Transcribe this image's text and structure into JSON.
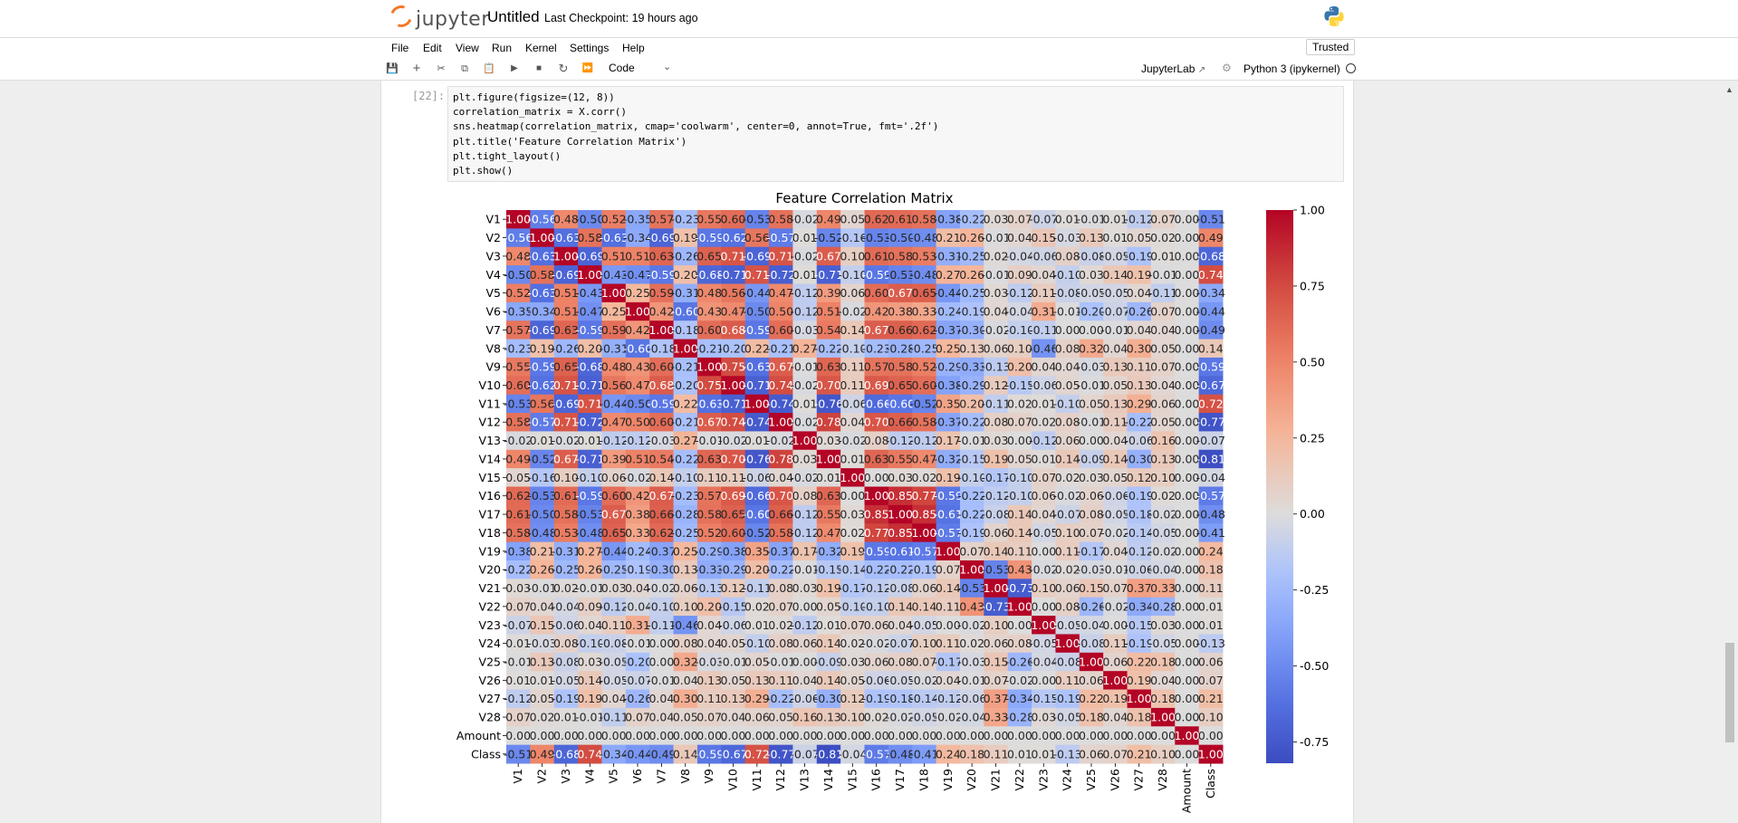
{
  "header": {
    "logo_text": "jupyter",
    "notebook_title": "Untitled",
    "checkpoint": "Last Checkpoint: 19 hours ago"
  },
  "menu": {
    "items": [
      "File",
      "Edit",
      "View",
      "Run",
      "Kernel",
      "Settings",
      "Help"
    ],
    "trusted": "Trusted"
  },
  "toolbar": {
    "icons": [
      "save-icon",
      "add-icon",
      "cut-icon",
      "copy-icon",
      "paste-icon",
      "run-icon",
      "stop-icon",
      "restart-icon",
      "fast-forward-icon"
    ],
    "cell_type": "Code",
    "jupyterlab_link": "JupyterLab",
    "kernel_name": "Python 3 (ipykernel)"
  },
  "cell": {
    "prompt": "[22]:",
    "lines": [
      "plt.figure(figsize=(12, 8))",
      "correlation_matrix = X.corr()",
      "sns.heatmap(correlation_matrix, cmap='coolwarm', center=0, annot=True, fmt='.2f')",
      "plt.title('Feature Correlation Matrix')",
      "plt.tight_layout()",
      "plt.show()"
    ]
  },
  "chart_data": {
    "type": "heatmap",
    "title": "Feature Correlation Matrix",
    "labels": [
      "V1",
      "V2",
      "V3",
      "V4",
      "V5",
      "V6",
      "V7",
      "V8",
      "V9",
      "V10",
      "V11",
      "V12",
      "V13",
      "V14",
      "V15",
      "V16",
      "V17",
      "V18",
      "V19",
      "V20",
      "V21",
      "V22",
      "V23",
      "V24",
      "V25",
      "V26",
      "V27",
      "V28",
      "Amount",
      "Class"
    ],
    "colorbar_ticks": [
      "1.00",
      "0.75",
      "0.50",
      "0.25",
      "0.00",
      "-0.25",
      "-0.50",
      "-0.75"
    ],
    "vmin": -0.82,
    "vmax": 1.0,
    "matrix": [
      [
        1.0,
        -0.56,
        0.48,
        -0.5,
        0.52,
        -0.35,
        0.57,
        -0.23,
        0.55,
        0.6,
        -0.53,
        0.58,
        -0.02,
        0.49,
        0.05,
        0.62,
        0.61,
        0.58,
        -0.38,
        -0.22,
        0.03,
        0.07,
        -0.07,
        0.01,
        -0.01,
        0.01,
        -0.12,
        0.07,
        -0.0,
        -0.51
      ],
      [
        -0.56,
        1.0,
        -0.63,
        0.58,
        -0.63,
        -0.34,
        -0.69,
        0.19,
        -0.59,
        -0.62,
        0.56,
        -0.57,
        0.01,
        -0.52,
        -0.16,
        -0.53,
        -0.5,
        -0.48,
        0.21,
        0.26,
        -0.01,
        0.04,
        0.15,
        -0.03,
        0.13,
        0.01,
        0.05,
        0.02,
        -0.0,
        0.49
      ],
      [
        0.48,
        -0.63,
        1.0,
        -0.69,
        0.51,
        0.51,
        0.63,
        -0.26,
        0.65,
        0.71,
        -0.69,
        0.71,
        -0.02,
        0.67,
        0.1,
        0.61,
        0.58,
        0.53,
        -0.31,
        -0.25,
        0.02,
        -0.04,
        -0.06,
        0.08,
        -0.08,
        -0.05,
        -0.19,
        0.01,
        -0.0,
        -0.68
      ],
      [
        -0.5,
        0.58,
        -0.69,
        1.0,
        -0.43,
        -0.47,
        -0.59,
        0.2,
        -0.68,
        -0.71,
        0.71,
        -0.72,
        0.01,
        -0.71,
        -0.1,
        -0.59,
        -0.53,
        -0.48,
        0.27,
        0.26,
        -0.01,
        0.09,
        0.04,
        -0.1,
        0.03,
        0.14,
        0.19,
        -0.01,
        0.0,
        0.74
      ],
      [
        0.52,
        -0.63,
        0.51,
        -0.43,
        1.0,
        0.25,
        0.59,
        -0.31,
        0.48,
        0.56,
        -0.44,
        0.47,
        -0.12,
        0.39,
        0.06,
        0.6,
        0.67,
        0.65,
        -0.44,
        -0.25,
        0.03,
        -0.12,
        0.11,
        -0.08,
        -0.05,
        -0.05,
        0.04,
        -0.11,
        -0.0,
        -0.34
      ],
      [
        -0.35,
        -0.34,
        0.51,
        -0.47,
        0.25,
        1.0,
        0.42,
        -0.6,
        0.43,
        0.47,
        -0.5,
        0.5,
        -0.12,
        0.51,
        -0.02,
        0.42,
        0.38,
        0.33,
        -0.24,
        -0.19,
        0.04,
        -0.04,
        0.31,
        -0.01,
        -0.2,
        -0.07,
        -0.26,
        0.07,
        0.0,
        -0.44
      ],
      [
        0.57,
        -0.69,
        0.63,
        -0.59,
        0.59,
        0.42,
        1.0,
        -0.18,
        0.6,
        0.68,
        -0.59,
        0.6,
        -0.03,
        0.54,
        0.14,
        0.67,
        0.66,
        0.62,
        -0.37,
        -0.3,
        -0.02,
        -0.1,
        -0.11,
        0.0,
        0.0,
        -0.01,
        0.04,
        0.04,
        0.0,
        -0.49
      ],
      [
        -0.23,
        0.19,
        -0.26,
        0.2,
        -0.31,
        -0.6,
        -0.18,
        1.0,
        -0.21,
        -0.2,
        0.22,
        -0.21,
        0.27,
        -0.22,
        -0.1,
        -0.23,
        -0.28,
        -0.25,
        0.25,
        0.13,
        0.06,
        0.1,
        -0.46,
        0.08,
        0.32,
        0.04,
        0.3,
        0.05,
        0.0,
        0.14
      ],
      [
        0.55,
        -0.59,
        0.65,
        -0.68,
        0.48,
        0.43,
        0.6,
        -0.21,
        1.0,
        0.75,
        -0.63,
        0.67,
        -0.01,
        0.63,
        0.11,
        0.57,
        0.58,
        0.52,
        -0.29,
        -0.33,
        -0.13,
        0.2,
        0.04,
        0.04,
        -0.03,
        0.13,
        0.11,
        0.07,
        -0.0,
        -0.59
      ],
      [
        0.6,
        -0.62,
        0.71,
        -0.71,
        0.56,
        0.47,
        0.68,
        -0.2,
        0.75,
        1.0,
        -0.71,
        0.74,
        -0.02,
        0.7,
        0.11,
        0.69,
        0.65,
        0.6,
        -0.38,
        -0.29,
        0.12,
        -0.15,
        -0.06,
        0.05,
        -0.01,
        0.05,
        0.13,
        0.04,
        0.0,
        -0.67
      ],
      [
        -0.53,
        0.56,
        -0.69,
        0.71,
        -0.44,
        -0.5,
        -0.59,
        0.22,
        -0.63,
        -0.71,
        1.0,
        -0.74,
        0.01,
        -0.76,
        -0.06,
        -0.66,
        -0.6,
        -0.52,
        0.35,
        0.2,
        -0.11,
        0.02,
        0.01,
        -0.1,
        0.05,
        0.13,
        0.29,
        0.06,
        0.0,
        0.72
      ],
      [
        0.58,
        -0.57,
        0.71,
        -0.72,
        0.47,
        0.5,
        0.6,
        -0.21,
        0.67,
        0.74,
        -0.74,
        1.0,
        -0.02,
        0.78,
        0.04,
        0.7,
        0.66,
        0.58,
        -0.37,
        -0.22,
        0.08,
        0.07,
        0.02,
        0.08,
        -0.01,
        0.11,
        -0.22,
        0.05,
        -0.0,
        -0.77
      ],
      [
        -0.02,
        0.01,
        -0.02,
        0.01,
        -0.12,
        -0.12,
        -0.03,
        0.27,
        -0.01,
        -0.02,
        0.01,
        -0.02,
        1.0,
        0.03,
        -0.02,
        0.08,
        -0.12,
        -0.12,
        0.17,
        -0.01,
        0.03,
        0.0,
        -0.12,
        0.06,
        0.0,
        0.04,
        -0.06,
        0.16,
        0.0,
        -0.07
      ],
      [
        0.49,
        -0.52,
        0.67,
        -0.71,
        0.39,
        0.51,
        0.54,
        -0.22,
        0.63,
        0.7,
        -0.76,
        0.78,
        0.03,
        1.0,
        0.01,
        0.63,
        0.55,
        0.47,
        -0.32,
        -0.15,
        0.19,
        0.05,
        0.01,
        0.14,
        -0.09,
        0.14,
        -0.3,
        0.13,
        0.0,
        -0.81
      ],
      [
        0.05,
        -0.16,
        0.1,
        -0.1,
        0.06,
        -0.02,
        0.14,
        -0.1,
        0.11,
        0.11,
        -0.06,
        0.04,
        -0.02,
        0.01,
        1.0,
        0.0,
        0.03,
        0.02,
        0.19,
        -0.1,
        -0.17,
        -0.1,
        0.07,
        0.02,
        0.03,
        0.05,
        0.12,
        0.1,
        0.0,
        -0.04
      ],
      [
        0.62,
        -0.53,
        0.61,
        -0.59,
        0.6,
        0.42,
        0.67,
        -0.23,
        0.57,
        0.69,
        -0.66,
        0.7,
        0.08,
        0.63,
        0.0,
        1.0,
        0.85,
        0.77,
        -0.59,
        -0.22,
        -0.12,
        -0.1,
        0.06,
        -0.02,
        0.06,
        -0.06,
        -0.19,
        0.02,
        -0.0,
        -0.57
      ],
      [
        0.61,
        -0.5,
        0.58,
        -0.53,
        0.67,
        0.38,
        0.66,
        -0.28,
        0.58,
        0.65,
        -0.6,
        0.66,
        -0.12,
        0.55,
        0.03,
        0.85,
        1.0,
        0.85,
        -0.61,
        -0.22,
        -0.08,
        0.14,
        0.04,
        -0.07,
        0.08,
        -0.05,
        -0.18,
        -0.02,
        -0.0,
        -0.48
      ],
      [
        0.58,
        -0.48,
        0.53,
        -0.48,
        0.65,
        0.33,
        0.62,
        -0.25,
        0.52,
        0.6,
        -0.52,
        0.58,
        -0.12,
        0.47,
        0.02,
        0.77,
        0.85,
        1.0,
        -0.57,
        -0.19,
        0.06,
        0.14,
        -0.05,
        0.1,
        0.07,
        -0.02,
        -0.14,
        -0.05,
        -0.0,
        -0.41
      ],
      [
        -0.38,
        0.21,
        -0.31,
        0.27,
        -0.44,
        -0.24,
        -0.37,
        0.25,
        -0.29,
        -0.38,
        0.35,
        -0.37,
        0.17,
        -0.32,
        0.19,
        -0.59,
        -0.61,
        -0.57,
        1.0,
        0.07,
        0.14,
        0.11,
        -0.0,
        0.11,
        -0.17,
        0.04,
        -0.12,
        -0.02,
        0.0,
        0.24
      ],
      [
        -0.22,
        0.26,
        -0.25,
        0.26,
        -0.25,
        -0.19,
        -0.3,
        0.13,
        -0.33,
        -0.29,
        0.2,
        -0.22,
        -0.01,
        -0.15,
        -0.14,
        -0.22,
        -0.22,
        -0.19,
        0.07,
        1.0,
        -0.53,
        0.43,
        -0.02,
        0.02,
        -0.03,
        -0.01,
        -0.06,
        -0.04,
        0.0,
        0.18
      ],
      [
        0.03,
        -0.01,
        0.02,
        -0.01,
        0.03,
        0.04,
        -0.02,
        0.06,
        -0.13,
        0.12,
        -0.11,
        0.08,
        0.03,
        0.19,
        -0.17,
        -0.12,
        -0.08,
        0.06,
        0.14,
        -0.53,
        1.0,
        -0.73,
        0.1,
        0.06,
        0.15,
        0.07,
        0.37,
        0.33,
        0.0,
        0.11
      ],
      [
        0.07,
        0.04,
        -0.04,
        0.09,
        -0.12,
        -0.04,
        -0.1,
        0.1,
        0.2,
        -0.15,
        0.02,
        0.07,
        0.0,
        0.05,
        -0.1,
        -0.1,
        0.14,
        0.14,
        0.11,
        0.43,
        -0.73,
        1.0,
        0.0,
        0.08,
        -0.26,
        -0.02,
        -0.34,
        -0.28,
        0.0,
        0.01
      ],
      [
        -0.07,
        0.15,
        -0.06,
        0.04,
        0.11,
        0.31,
        -0.11,
        -0.46,
        0.04,
        -0.06,
        0.01,
        0.02,
        -0.12,
        0.01,
        0.07,
        0.06,
        0.04,
        -0.05,
        -0.0,
        -0.02,
        0.1,
        0.0,
        1.0,
        -0.05,
        -0.04,
        0.0,
        -0.15,
        0.03,
        0.0,
        0.01
      ],
      [
        0.01,
        -0.03,
        0.08,
        -0.1,
        -0.08,
        -0.01,
        0.0,
        0.08,
        0.04,
        0.05,
        -0.1,
        0.08,
        0.06,
        0.14,
        0.02,
        -0.02,
        -0.07,
        0.1,
        0.11,
        0.02,
        0.06,
        0.08,
        -0.05,
        1.0,
        -0.08,
        0.11,
        -0.19,
        -0.05,
        0.0,
        -0.13
      ],
      [
        -0.01,
        0.13,
        -0.08,
        0.03,
        -0.05,
        -0.2,
        0.0,
        0.32,
        -0.03,
        -0.01,
        0.05,
        -0.01,
        0.0,
        -0.09,
        0.03,
        0.06,
        0.08,
        0.07,
        -0.17,
        -0.03,
        0.15,
        -0.26,
        -0.04,
        -0.08,
        1.0,
        0.06,
        0.22,
        0.18,
        0.0,
        0.06
      ],
      [
        0.01,
        0.01,
        -0.05,
        0.14,
        -0.05,
        -0.07,
        -0.01,
        0.04,
        0.13,
        0.05,
        0.13,
        0.11,
        0.04,
        0.14,
        0.05,
        -0.06,
        -0.05,
        -0.02,
        0.04,
        -0.01,
        0.07,
        -0.02,
        0.0,
        0.11,
        0.06,
        1.0,
        0.19,
        0.04,
        0.0,
        0.07
      ],
      [
        -0.12,
        0.05,
        -0.19,
        0.19,
        0.04,
        -0.26,
        0.04,
        0.3,
        0.11,
        0.13,
        0.29,
        -0.22,
        -0.06,
        -0.3,
        0.12,
        -0.19,
        -0.18,
        -0.14,
        -0.12,
        -0.06,
        0.37,
        -0.34,
        -0.15,
        -0.19,
        0.22,
        0.19,
        1.0,
        0.18,
        0.0,
        0.21
      ],
      [
        0.07,
        0.02,
        0.01,
        -0.01,
        -0.11,
        0.07,
        0.04,
        0.05,
        0.07,
        0.04,
        0.06,
        0.05,
        0.16,
        0.13,
        0.1,
        0.02,
        -0.02,
        -0.05,
        -0.02,
        -0.04,
        0.33,
        -0.28,
        0.03,
        -0.05,
        0.18,
        0.04,
        0.18,
        1.0,
        0.0,
        0.1
      ],
      [
        -0.0,
        -0.0,
        -0.0,
        0.0,
        -0.0,
        0.0,
        0.0,
        0.0,
        -0.0,
        0.0,
        0.0,
        -0.0,
        0.0,
        0.0,
        0.0,
        -0.0,
        -0.0,
        -0.0,
        0.0,
        0.0,
        0.0,
        0.0,
        0.0,
        0.0,
        0.0,
        0.0,
        0.0,
        0.0,
        1.0,
        0.0
      ],
      [
        -0.51,
        0.49,
        -0.68,
        0.74,
        -0.34,
        -0.44,
        -0.49,
        0.14,
        -0.59,
        -0.67,
        0.72,
        -0.77,
        -0.07,
        -0.81,
        -0.04,
        -0.57,
        -0.48,
        -0.41,
        0.24,
        0.18,
        0.11,
        0.01,
        0.01,
        -0.13,
        0.06,
        0.07,
        0.21,
        0.1,
        0.0,
        1.0
      ]
    ]
  }
}
